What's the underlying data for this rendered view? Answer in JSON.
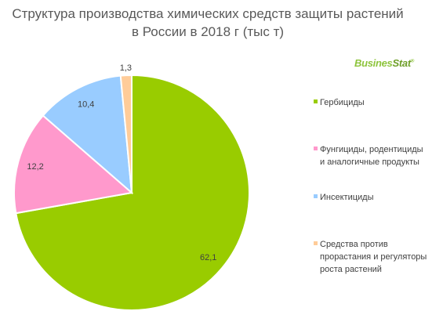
{
  "chart_data": {
    "type": "pie",
    "title_lines": [
      "Структура производства химических средств защиты растений",
      "в России в 2018 г (тыс т)"
    ],
    "categories": [
      "Гербициды",
      "Фунгициды, родентициды и аналогичные продукты",
      "Инсектициды",
      "Средства против прорастания и регуляторы роста растений"
    ],
    "values": [
      62.1,
      12.2,
      10.4,
      1.3
    ],
    "data_labels": [
      "62,1",
      "12,2",
      "10,4",
      "1,3"
    ],
    "colors": [
      "#99cc00",
      "#ff99cc",
      "#99ccff",
      "#ffcc99"
    ],
    "legend_position": "right"
  },
  "legend": {
    "items": [
      {
        "lines": [
          "Гербициды"
        ]
      },
      {
        "lines": [
          "Фунгициды, родентициды",
          "и аналогичные продукты"
        ]
      },
      {
        "lines": [
          "Инсектициды"
        ]
      },
      {
        "lines": [
          "Средства против",
          "прорастания и регуляторы",
          "роста растений"
        ]
      }
    ]
  },
  "logo": {
    "part1": "Busines",
    "part2": "Stat",
    "mark": "®"
  }
}
